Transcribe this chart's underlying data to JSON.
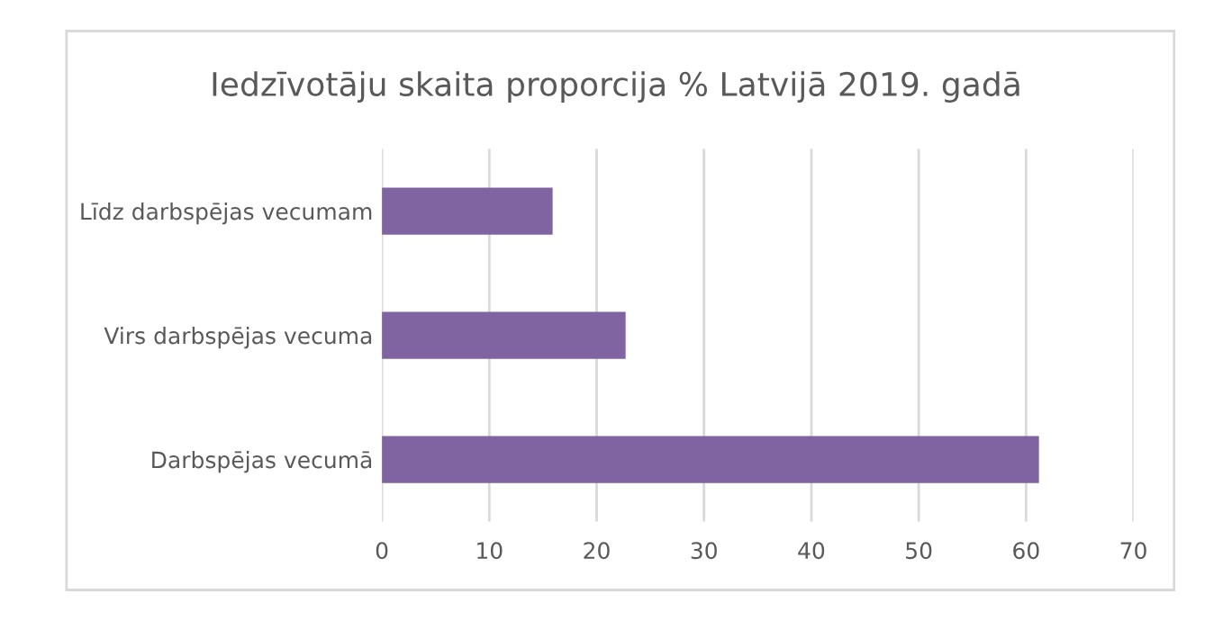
{
  "chart_data": {
    "type": "bar",
    "orientation": "horizontal",
    "title": "Iedzīvotāju skaita proporcija % Latvijā 2019. gadā",
    "categories": [
      "Līdz darbspējas vecumam",
      "Virs darbspējas vecuma",
      "Darbspējas vecumā"
    ],
    "values": [
      15.9,
      22.7,
      61.2
    ],
    "color": "#8064a2",
    "xlim": [
      0,
      70
    ],
    "xticks": [
      0,
      10,
      20,
      30,
      40,
      50,
      60,
      70
    ],
    "grid": "x",
    "legend": false
  }
}
